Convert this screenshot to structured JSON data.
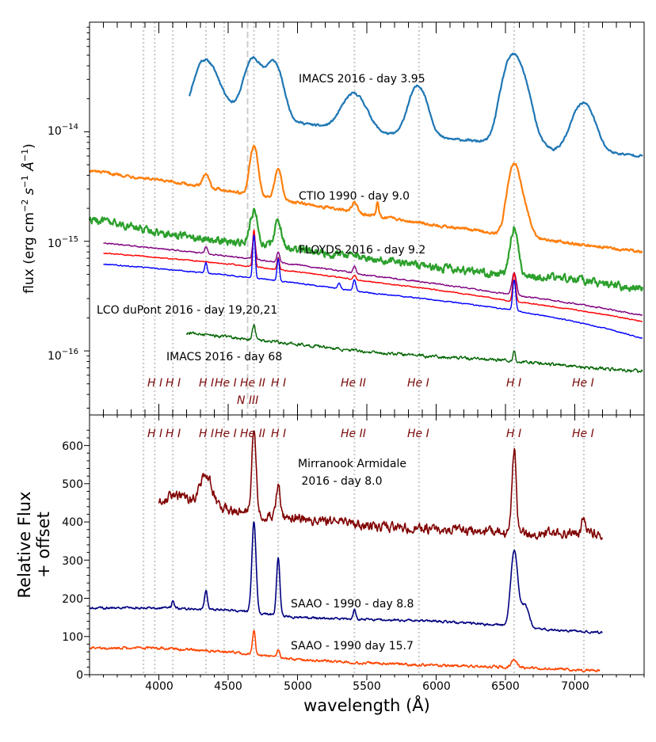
{
  "colors": {
    "imacs_early": "#1f77b4",
    "ctio": "#ff7f0e",
    "floyds": "#2ca02c",
    "dupont_19": "#800080",
    "dupont_20": "#ff0000",
    "dupont_21": "#0000ff",
    "imacs_late": "#006400",
    "mirranook": "#800000",
    "saao_88": "#000080",
    "saao_157": "#ff4500",
    "line_marker": "#cccccc",
    "ion_text": "#7b0a0a"
  },
  "chart_data": [
    {
      "type": "line",
      "panel": "top",
      "yscale": "log",
      "xlim": [
        3500,
        7500
      ],
      "ylim": [
        2.6e-17,
        1e-13
      ],
      "ylabel_parts": {
        "a": "flux (erg cm",
        "b": "−2",
        "c": " s",
        "d": "−1",
        "e": " Å",
        "f": "−1",
        "g": ")"
      },
      "yticks": [
        {
          "value": 1e-16,
          "label": "10",
          "exp": "−16"
        },
        {
          "value": 1e-15,
          "label": "10",
          "exp": "−15"
        },
        {
          "value": 1e-14,
          "label": "10",
          "exp": "−14"
        }
      ],
      "series": [
        {
          "name": "IMACS 2016 - day 3.95",
          "color_key": "imacs_early",
          "x_start": 4220,
          "x_end": 7490,
          "baseline": [
            [
              4220,
              1.45e-14
            ],
            [
              4300,
              1.9e-14
            ],
            [
              4450,
              1.7e-14
            ],
            [
              4700,
              1.6e-14
            ],
            [
              5000,
              1.22e-14
            ],
            [
              5300,
              1.05e-14
            ],
            [
              5600,
              9.6e-15
            ],
            [
              6000,
              8.8e-15
            ],
            [
              6400,
              8e-15
            ],
            [
              6700,
              8.2e-15
            ],
            [
              6850,
              6.8e-15
            ],
            [
              7000,
              8e-15
            ],
            [
              7200,
              6.5e-15
            ],
            [
              7490,
              6e-15
            ]
          ],
          "features": [
            [
              4340,
              1.45,
              80
            ],
            [
              4680,
              1.9,
              55
            ],
            [
              4830,
              2.05,
              55
            ],
            [
              5410,
              1.2,
              80
            ],
            [
              5870,
              1.9,
              60
            ],
            [
              6540,
              4.3,
              60
            ],
            [
              6620,
              2.0,
              60
            ],
            [
              7070,
              1.45,
              70
            ]
          ],
          "noise": 0.04
        },
        {
          "name": "CTIO  1990 - day 9.0",
          "color_key": "ctio",
          "x_start": 3500,
          "x_end": 7490,
          "baseline": [
            [
              3500,
              4.4e-15
            ],
            [
              4000,
              3.6e-15
            ],
            [
              4500,
              2.9e-15
            ],
            [
              5000,
              2.25e-15
            ],
            [
              5500,
              1.75e-15
            ],
            [
              6000,
              1.4e-15
            ],
            [
              6500,
              1.15e-15
            ],
            [
              7000,
              9.5e-16
            ],
            [
              7490,
              8e-16
            ]
          ],
          "features": [
            [
              4340,
              0.35,
              20
            ],
            [
              4686,
              1.8,
              25
            ],
            [
              4861,
              0.9,
              22
            ],
            [
              5411,
              0.22,
              20
            ],
            [
              5577,
              0.35,
              8
            ],
            [
              6563,
              3.5,
              40
            ],
            [
              6640,
              0.6,
              40
            ]
          ],
          "noise": 0.05
        },
        {
          "name": "FLOYDS 2016 - day 9.2",
          "color_key": "floyds",
          "x_start": 3500,
          "x_end": 7490,
          "baseline": [
            [
              3500,
              1.6e-15
            ],
            [
              4000,
              1.2e-15
            ],
            [
              4500,
              1e-15
            ],
            [
              5000,
              8.5e-16
            ],
            [
              5500,
              7e-16
            ],
            [
              6000,
              5.8e-16
            ],
            [
              6500,
              5e-16
            ],
            [
              7000,
              4.5e-16
            ],
            [
              7490,
              3.7e-16
            ]
          ],
          "features": [
            [
              4686,
              1.0,
              25
            ],
            [
              4861,
              0.8,
              22
            ],
            [
              6563,
              1.7,
              25
            ]
          ],
          "noise": 0.14
        },
        {
          "name": "LCO duPont 2016 - day 19",
          "color_key": "dupont_19",
          "x_start": 3600,
          "x_end": 7490,
          "baseline": [
            [
              3600,
              9.6e-16
            ],
            [
              4500,
              7.3e-16
            ],
            [
              5500,
              4.9e-16
            ],
            [
              6500,
              3.3e-16
            ],
            [
              7490,
              2.1e-16
            ]
          ],
          "features": [
            [
              4340,
              0.15,
              10
            ],
            [
              4686,
              0.6,
              10
            ],
            [
              4861,
              0.25,
              10
            ],
            [
              5411,
              0.15,
              10
            ],
            [
              6563,
              0.6,
              15
            ]
          ],
          "noise": 0.025
        },
        {
          "name": "LCO duPont 2016 - day 20",
          "color_key": "dupont_20",
          "x_start": 3600,
          "x_end": 7490,
          "baseline": [
            [
              3600,
              7.8e-16
            ],
            [
              4500,
              6.2e-16
            ],
            [
              5500,
              4.3e-16
            ],
            [
              6500,
              2.9e-16
            ],
            [
              7490,
              1.85e-16
            ]
          ],
          "features": [
            [
              4686,
              1.2,
              8
            ],
            [
              4861,
              0.3,
              8
            ],
            [
              5411,
              0.1,
              10
            ],
            [
              6563,
              0.8,
              10
            ]
          ],
          "noise": 0.02
        },
        {
          "name": "LCO duPont 2016 - day 21",
          "color_key": "dupont_21",
          "x_start": 3600,
          "x_end": 7490,
          "baseline": [
            [
              3600,
              6.2e-16
            ],
            [
              4500,
              4.9e-16
            ],
            [
              5500,
              3.4e-16
            ],
            [
              6000,
              2.9e-16
            ],
            [
              6500,
              2.4e-16
            ],
            [
              7490,
              1.3e-16
            ]
          ],
          "features": [
            [
              4340,
              0.25,
              8
            ],
            [
              4686,
              1.5,
              8
            ],
            [
              4861,
              0.6,
              8
            ],
            [
              5300,
              0.12,
              10
            ],
            [
              5411,
              0.25,
              10
            ],
            [
              6563,
              0.9,
              10
            ]
          ],
          "noise": 0.02
        },
        {
          "name": "IMACS 2016 - day 68",
          "color_key": "imacs_late",
          "x_start": 4200,
          "x_end": 7490,
          "baseline": [
            [
              4200,
              1.45e-16
            ],
            [
              4600,
              1.3e-16
            ],
            [
              5000,
              1.15e-16
            ],
            [
              5500,
              9.8e-17
            ],
            [
              6000,
              8.8e-17
            ],
            [
              6500,
              8.2e-17
            ],
            [
              7000,
              7.2e-17
            ],
            [
              7490,
              6.5e-17
            ]
          ],
          "features": [
            [
              4686,
              0.35,
              10
            ],
            [
              6563,
              0.25,
              8
            ]
          ],
          "noise": 0.06
        }
      ],
      "labels": {
        "imacs_early": "IMACS 2016 - day 3.95",
        "ctio": "CTIO  1990 - day 9.0",
        "floyds": "FLOYDS 2016 - day 9.2",
        "dupont": "LCO duPont 2016 - day 19,20,21",
        "imacs_late": "IMACS 2016 - day 68"
      },
      "ion_labels": [
        "H I",
        "H I",
        "H I",
        "He I",
        "He II",
        "H I",
        "He II",
        "He I",
        "H I",
        "He I"
      ],
      "ion_label_extra": "N III"
    },
    {
      "type": "line",
      "panel": "bottom",
      "xlim": [
        3500,
        7500
      ],
      "ylim": [
        0,
        680
      ],
      "xlabel": "wavelength (Å)",
      "ylabel_line1": "Relative Flux",
      "ylabel_line2": "+ offset",
      "xticks": [
        4000,
        4500,
        5000,
        5500,
        6000,
        6500,
        7000
      ],
      "xtick_labels": [
        "4000",
        "4500",
        "5000",
        "5500",
        "6000",
        "6500",
        "7000"
      ],
      "yticks": [
        0,
        100,
        200,
        300,
        400,
        500,
        600
      ],
      "ytick_labels": [
        "0",
        "100",
        "200",
        "300",
        "400",
        "500",
        "600"
      ],
      "series": [
        {
          "name": "Mirranook Armidale 2016 - day 8.0",
          "color_key": "mirranook",
          "x_start": 4000,
          "x_end": 7200,
          "baseline": [
            [
              4000,
              450
            ],
            [
              4100,
              470
            ],
            [
              4300,
              450
            ],
            [
              4500,
              430
            ],
            [
              5000,
              410
            ],
            [
              5500,
              390
            ],
            [
              6000,
              380
            ],
            [
              6500,
              370
            ],
            [
              7000,
              370
            ],
            [
              7200,
              370
            ]
          ],
          "features": [
            [
              4340,
              80,
              40
            ],
            [
              4686,
              230,
              15
            ],
            [
              4861,
              80,
              15
            ],
            [
              6563,
              220,
              15
            ],
            [
              7065,
              40,
              15
            ]
          ],
          "noise": 22
        },
        {
          "name": "SAAO - 1990 - day 8.8",
          "color_key": "saao_88",
          "x_start": 3500,
          "x_end": 7200,
          "baseline": [
            [
              3500,
              175
            ],
            [
              4000,
              175
            ],
            [
              4500,
              170
            ],
            [
              5000,
              150
            ],
            [
              5500,
              145
            ],
            [
              6000,
              140
            ],
            [
              6450,
              130
            ],
            [
              6700,
              120
            ],
            [
              7200,
              110
            ]
          ],
          "features": [
            [
              4101,
              20,
              8
            ],
            [
              4340,
              50,
              10
            ],
            [
              4686,
              240,
              15
            ],
            [
              4861,
              150,
              12
            ],
            [
              5411,
              25,
              8
            ],
            [
              6563,
              200,
              25
            ],
            [
              6640,
              60,
              30
            ]
          ],
          "noise": 5
        },
        {
          "name": "SAAO - 1990 day 15.7",
          "color_key": "saao_157",
          "x_start": 3500,
          "x_end": 7180,
          "baseline": [
            [
              3500,
              70
            ],
            [
              4000,
              70
            ],
            [
              4500,
              60
            ],
            [
              5000,
              40
            ],
            [
              5500,
              30
            ],
            [
              6000,
              25
            ],
            [
              6500,
              20
            ],
            [
              7180,
              10
            ]
          ],
          "features": [
            [
              4686,
              60,
              10
            ],
            [
              4861,
              20,
              10
            ],
            [
              6563,
              20,
              20
            ]
          ],
          "noise": 6
        }
      ],
      "labels": {
        "mirranook_1": "Mirranook Armidale",
        "mirranook_2": " 2016 - day 8.0",
        "saao_88": "SAAO - 1990 - day 8.8",
        "saao_157": "SAAO - 1990 day 15.7"
      },
      "ion_labels": [
        "H I",
        "H I",
        "H I",
        "He I",
        "He II",
        "H I",
        "He II",
        "He I",
        "H I",
        "He I"
      ]
    }
  ],
  "reference_lines": [
    3889,
    3970,
    4101,
    4340,
    4471,
    4640,
    4686,
    4861,
    5411,
    5876,
    6563,
    7065
  ],
  "reference_lines_top_only": [
    4640
  ]
}
